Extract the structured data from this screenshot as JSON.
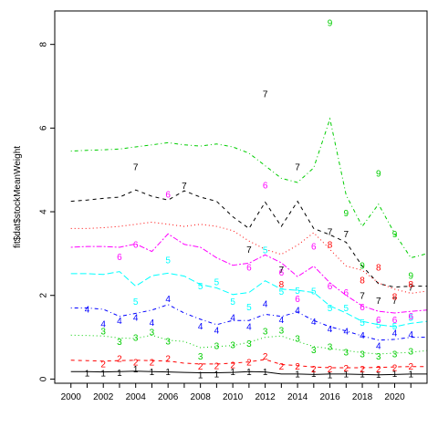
{
  "chart_data": {
    "type": "line",
    "title": "",
    "xlabel": "",
    "ylabel": "fit$dat$stockMeanWeight",
    "xlim": [
      1999,
      2022
    ],
    "ylim": [
      -0.1,
      8.8
    ],
    "x_ticks": [
      2000,
      2002,
      2004,
      2006,
      2008,
      2010,
      2012,
      2014,
      2016,
      2018,
      2020
    ],
    "y_ticks": [
      0,
      2,
      4,
      6,
      8
    ],
    "grid": false,
    "legend": "none",
    "x": [
      2000,
      2001,
      2002,
      2003,
      2004,
      2005,
      2006,
      2007,
      2008,
      2009,
      2010,
      2011,
      2012,
      2013,
      2014,
      2015,
      2016,
      2017,
      2018,
      2019,
      2020,
      2021,
      2022
    ],
    "series": [
      {
        "label": "1",
        "color": "#000000",
        "dash": "solid",
        "values": [
          0.18,
          0.18,
          0.17,
          0.18,
          0.19,
          0.18,
          0.17,
          0.16,
          0.15,
          0.15,
          0.16,
          0.18,
          0.17,
          0.12,
          0.12,
          0.11,
          0.12,
          0.12,
          0.11,
          0.1,
          0.11,
          0.12,
          0.12
        ],
        "points": [
          [
            2001,
            0.12
          ],
          [
            2002,
            0.12
          ],
          [
            2003,
            0.13
          ],
          [
            2004,
            0.22
          ],
          [
            2005,
            0.15
          ],
          [
            2006,
            0.15
          ],
          [
            2008,
            0.08
          ],
          [
            2009,
            0.1
          ],
          [
            2010,
            0.15
          ],
          [
            2011,
            0.15
          ],
          [
            2012,
            0.15
          ],
          [
            2014,
            0.1
          ],
          [
            2015,
            0.11
          ],
          [
            2016,
            0.08
          ],
          [
            2017,
            0.1
          ],
          [
            2018,
            0.1
          ],
          [
            2019,
            0.09
          ],
          [
            2020,
            0.11
          ],
          [
            2021,
            0.1
          ]
        ]
      },
      {
        "label": "2",
        "color": "#ff0000",
        "dash": "dashed",
        "values": [
          0.45,
          0.44,
          0.43,
          0.44,
          0.45,
          0.44,
          0.43,
          0.38,
          0.36,
          0.36,
          0.38,
          0.41,
          0.47,
          0.35,
          0.32,
          0.29,
          0.27,
          0.27,
          0.27,
          0.28,
          0.29,
          0.3,
          0.3
        ],
        "points": [
          [
            2002,
            0.34
          ],
          [
            2003,
            0.47
          ],
          [
            2004,
            0.38
          ],
          [
            2005,
            0.38
          ],
          [
            2006,
            0.47
          ],
          [
            2008,
            0.28
          ],
          [
            2009,
            0.3
          ],
          [
            2010,
            0.32
          ],
          [
            2011,
            0.38
          ],
          [
            2012,
            0.53
          ],
          [
            2013,
            0.28
          ],
          [
            2014,
            0.28
          ],
          [
            2015,
            0.22
          ],
          [
            2016,
            0.22
          ],
          [
            2017,
            0.24
          ],
          [
            2018,
            0.22
          ],
          [
            2019,
            0.22
          ],
          [
            2020,
            0.25
          ],
          [
            2021,
            0.28
          ]
        ]
      },
      {
        "label": "3",
        "color": "#00cd00",
        "dash": "dotted",
        "values": [
          1.05,
          1.04,
          1.03,
          0.98,
          0.97,
          1.05,
          0.93,
          0.9,
          0.75,
          0.78,
          0.8,
          0.88,
          1.0,
          1.03,
          0.9,
          0.78,
          0.73,
          0.68,
          0.63,
          0.6,
          0.62,
          0.64,
          0.68
        ],
        "points": [
          [
            2002,
            1.12
          ],
          [
            2003,
            0.87
          ],
          [
            2004,
            0.97
          ],
          [
            2005,
            1.1
          ],
          [
            2006,
            0.88
          ],
          [
            2008,
            0.52
          ],
          [
            2009,
            0.78
          ],
          [
            2010,
            0.8
          ],
          [
            2011,
            0.83
          ],
          [
            2012,
            1.13
          ],
          [
            2013,
            1.15
          ],
          [
            2014,
            0.95
          ],
          [
            2015,
            0.68
          ],
          [
            2016,
            0.75
          ],
          [
            2017,
            0.62
          ],
          [
            2018,
            0.58
          ],
          [
            2019,
            0.53
          ],
          [
            2020,
            0.58
          ],
          [
            2021,
            0.65
          ]
        ]
      },
      {
        "label": "4",
        "color": "#0000ff",
        "dash": "dotdash",
        "values": [
          1.7,
          1.7,
          1.67,
          1.5,
          1.57,
          1.65,
          1.78,
          1.58,
          1.43,
          1.3,
          1.4,
          1.4,
          1.55,
          1.5,
          1.6,
          1.4,
          1.25,
          1.15,
          1.03,
          0.93,
          0.95,
          1.0,
          1.0
        ],
        "points": [
          [
            2001,
            1.65
          ],
          [
            2002,
            1.3
          ],
          [
            2003,
            1.38
          ],
          [
            2004,
            1.45
          ],
          [
            2005,
            1.33
          ],
          [
            2006,
            1.9
          ],
          [
            2008,
            1.25
          ],
          [
            2009,
            1.15
          ],
          [
            2010,
            1.45
          ],
          [
            2011,
            1.23
          ],
          [
            2012,
            1.78
          ],
          [
            2013,
            1.4
          ],
          [
            2014,
            1.63
          ],
          [
            2015,
            1.35
          ],
          [
            2016,
            1.18
          ],
          [
            2017,
            1.13
          ],
          [
            2018,
            1.03
          ],
          [
            2019,
            0.78
          ],
          [
            2020,
            1.08
          ],
          [
            2021,
            1.05
          ]
        ]
      },
      {
        "label": "5",
        "color": "#00ffff",
        "dash": "longdash",
        "values": [
          2.52,
          2.52,
          2.5,
          2.57,
          2.22,
          2.47,
          2.53,
          2.46,
          2.26,
          2.18,
          2.02,
          2.07,
          2.35,
          2.15,
          2.12,
          2.07,
          1.75,
          1.58,
          1.38,
          1.3,
          1.25,
          1.33,
          1.38
        ],
        "points": [
          [
            2004,
            1.83
          ],
          [
            2006,
            2.83
          ],
          [
            2008,
            2.2
          ],
          [
            2009,
            2.3
          ],
          [
            2010,
            1.83
          ],
          [
            2011,
            1.7
          ],
          [
            2012,
            3.07
          ],
          [
            2013,
            2.07
          ],
          [
            2014,
            2.1
          ],
          [
            2015,
            2.08
          ],
          [
            2016,
            1.68
          ],
          [
            2017,
            1.68
          ],
          [
            2018,
            1.33
          ],
          [
            2019,
            1.28
          ],
          [
            2020,
            1.25
          ],
          [
            2021,
            1.45
          ]
        ]
      },
      {
        "label": "6",
        "color": "#ff00ff",
        "dash": "twodash",
        "values": [
          3.15,
          3.17,
          3.17,
          3.15,
          3.23,
          3.05,
          3.47,
          3.22,
          3.15,
          2.9,
          2.72,
          2.77,
          2.97,
          2.78,
          2.45,
          2.7,
          2.3,
          2.0,
          1.75,
          1.62,
          1.58,
          1.62,
          1.65
        ],
        "points": [
          [
            2003,
            2.9
          ],
          [
            2004,
            3.2
          ],
          [
            2006,
            4.4
          ],
          [
            2011,
            2.65
          ],
          [
            2012,
            4.62
          ],
          [
            2013,
            2.53
          ],
          [
            2014,
            1.9
          ],
          [
            2015,
            3.15
          ],
          [
            2016,
            2.2
          ],
          [
            2017,
            2.05
          ],
          [
            2018,
            1.7
          ],
          [
            2019,
            1.4
          ],
          [
            2020,
            1.4
          ],
          [
            2021,
            1.48
          ]
        ]
      },
      {
        "label": "7",
        "color": "#000000",
        "dash": "dashed",
        "values": [
          4.25,
          4.28,
          4.32,
          4.35,
          4.52,
          4.37,
          4.28,
          4.5,
          4.35,
          4.25,
          3.88,
          3.6,
          4.23,
          3.65,
          4.25,
          3.6,
          3.45,
          3.27,
          2.7,
          2.28,
          2.2,
          2.22,
          2.22
        ],
        "points": [
          [
            2004,
            5.05
          ],
          [
            2007,
            4.6
          ],
          [
            2011,
            3.08
          ],
          [
            2012,
            6.8
          ],
          [
            2013,
            2.6
          ],
          [
            2014,
            5.05
          ],
          [
            2016,
            3.5
          ],
          [
            2017,
            3.45
          ],
          [
            2018,
            1.98
          ],
          [
            2019,
            1.85
          ],
          [
            2020,
            1.85
          ],
          [
            2021,
            2.17
          ]
        ]
      },
      {
        "label": "8",
        "color": "#ff0000",
        "dash": "dotted",
        "values": [
          3.6,
          3.6,
          3.62,
          3.65,
          3.7,
          3.75,
          3.7,
          3.65,
          3.7,
          3.65,
          3.55,
          3.3,
          3.1,
          2.98,
          3.2,
          3.5,
          3.1,
          2.7,
          2.6,
          2.3,
          2.15,
          2.05,
          2.1
        ],
        "points": [
          [
            2013,
            2.25
          ],
          [
            2016,
            3.2
          ],
          [
            2018,
            2.35
          ],
          [
            2019,
            2.65
          ],
          [
            2020,
            1.95
          ],
          [
            2021,
            2.25
          ]
        ]
      },
      {
        "label": "9",
        "color": "#00cd00",
        "dash": "dotdash",
        "values": [
          5.45,
          5.47,
          5.48,
          5.5,
          5.55,
          5.6,
          5.65,
          5.6,
          5.57,
          5.62,
          5.55,
          5.4,
          5.1,
          4.8,
          4.7,
          5.05,
          6.22,
          4.4,
          3.65,
          4.18,
          3.48,
          2.9,
          3.0
        ],
        "points": [
          [
            2016,
            8.5
          ],
          [
            2017,
            3.95
          ],
          [
            2018,
            2.7
          ],
          [
            2019,
            4.9
          ],
          [
            2020,
            3.45
          ],
          [
            2021,
            2.45
          ]
        ]
      }
    ]
  }
}
